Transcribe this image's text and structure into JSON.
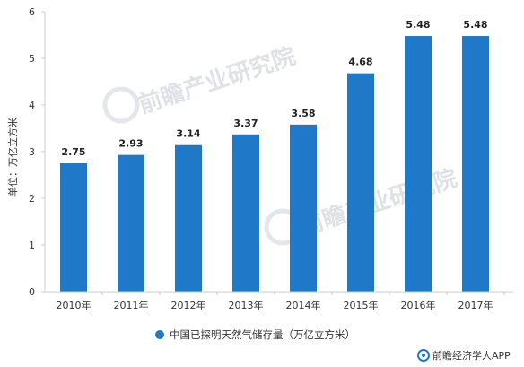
{
  "chart_data": {
    "type": "bar",
    "categories": [
      "2010年",
      "2011年",
      "2012年",
      "2013年",
      "2014年",
      "2015年",
      "2016年",
      "2017年"
    ],
    "values": [
      2.75,
      2.93,
      3.14,
      3.37,
      3.58,
      4.68,
      5.48,
      5.48
    ],
    "value_labels": [
      "2.75",
      "2.93",
      "3.14",
      "3.37",
      "3.58",
      "4.68",
      "5.48",
      "5.48"
    ],
    "ylabel": "单位：万亿立方米",
    "ylim": [
      0,
      6
    ],
    "yticks": [
      0,
      1,
      2,
      3,
      4,
      5,
      6
    ],
    "grid": false,
    "legend_position": "bottom",
    "series": [
      {
        "name": "中国已探明天然气储存量（万亿立方米）",
        "color": "#1f78c8"
      }
    ]
  },
  "watermark": "前瞻产业研究院",
  "footer": {
    "text": "前瞻经济学人APP",
    "icon": "qianzhan-logo-icon"
  }
}
